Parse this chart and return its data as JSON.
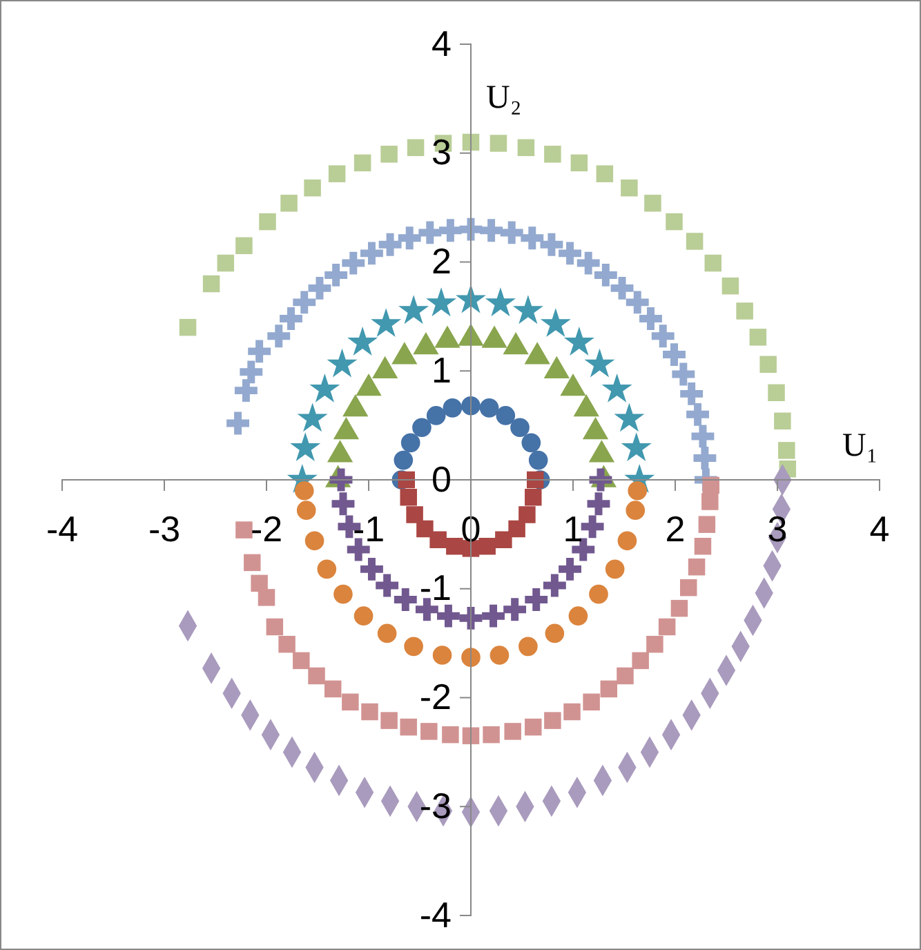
{
  "chart_data": {
    "type": "scatter",
    "xlabel": "U₁",
    "ylabel": "U₂",
    "xlim": [
      -4,
      4
    ],
    "ylim": [
      -4,
      4
    ],
    "xticks": [
      -4,
      -3,
      -2,
      -1,
      0,
      1,
      2,
      3,
      4
    ],
    "yticks": [
      -4,
      -3,
      -2,
      -1,
      0,
      1,
      2,
      3,
      4
    ],
    "grid": false,
    "series": [
      {
        "color": "#4572a7",
        "marker": "circle",
        "x": [
          0.68,
          0.66,
          0.59,
          0.48,
          0.34,
          0.18,
          0,
          -0.18,
          -0.34,
          -0.48,
          -0.59,
          -0.66,
          -0.68
        ],
        "values": [
          0,
          0.18,
          0.34,
          0.48,
          0.59,
          0.66,
          0.68,
          0.66,
          0.59,
          0.48,
          0.34,
          0.18,
          0
        ]
      },
      {
        "color": "#aa4643",
        "marker": "square",
        "x": [
          0.63,
          0.61,
          0.55,
          0.45,
          0.32,
          0.16,
          0,
          -0.16,
          -0.32,
          -0.45,
          -0.55,
          -0.61,
          -0.63
        ],
        "values": [
          0,
          -0.16,
          -0.32,
          -0.45,
          -0.55,
          -0.61,
          -0.63,
          -0.61,
          -0.55,
          -0.45,
          -0.32,
          -0.16,
          0
        ]
      },
      {
        "color": "#89a54e",
        "marker": "triangle",
        "x": [
          1.3,
          1.28,
          1.22,
          1.13,
          1,
          0.84,
          0.65,
          0.44,
          0.23,
          0,
          -0.23,
          -0.44,
          -0.65,
          -0.84,
          -1,
          -1.13,
          -1.22,
          -1.28,
          -1.3
        ],
        "values": [
          0,
          0.23,
          0.44,
          0.65,
          0.84,
          1,
          1.13,
          1.22,
          1.28,
          1.3,
          1.28,
          1.22,
          1.13,
          1,
          0.84,
          0.65,
          0.44,
          0.23,
          0
        ]
      },
      {
        "color": "#71588f",
        "marker": "cross",
        "x": [
          1.27,
          1.25,
          1.19,
          1.1,
          0.97,
          0.82,
          0.64,
          0.43,
          0.22,
          0,
          -0.22,
          -0.43,
          -0.64,
          -0.82,
          -0.97,
          -1.1,
          -1.19,
          -1.25,
          -1.27
        ],
        "values": [
          0,
          -0.22,
          -0.43,
          -0.64,
          -0.82,
          -0.97,
          -1.1,
          -1.19,
          -1.25,
          -1.27,
          -1.25,
          -1.19,
          -1.1,
          -0.97,
          -0.82,
          -0.64,
          -0.43,
          -0.22,
          0
        ]
      },
      {
        "color": "#4198af",
        "marker": "star",
        "x": [
          1.65,
          1.62,
          1.55,
          1.43,
          1.26,
          1.06,
          0.83,
          0.56,
          0.29,
          0,
          -0.29,
          -0.56,
          -0.83,
          -1.06,
          -1.26,
          -1.43,
          -1.55,
          -1.62,
          -1.65
        ],
        "values": [
          0,
          0.29,
          0.56,
          0.83,
          1.06,
          1.26,
          1.43,
          1.55,
          1.62,
          1.65,
          1.62,
          1.55,
          1.43,
          1.26,
          1.06,
          0.83,
          0.56,
          0.29,
          0
        ]
      },
      {
        "color": "#db843d",
        "marker": "circle",
        "x": [
          1.63,
          1.61,
          1.53,
          1.41,
          1.25,
          1.05,
          0.82,
          0.56,
          0.28,
          0,
          -0.28,
          -0.56,
          -0.82,
          -1.05,
          -1.25,
          -1.41,
          -1.53,
          -1.61,
          -1.63
        ],
        "values": [
          -0.1,
          -0.28,
          -0.56,
          -0.82,
          -1.05,
          -1.25,
          -1.41,
          -1.53,
          -1.61,
          -1.63,
          -1.61,
          -1.53,
          -1.41,
          -1.25,
          -1.05,
          -0.82,
          -0.56,
          -0.28,
          -0.1
        ]
      },
      {
        "color": "#93a9cf",
        "marker": "cross",
        "x": [
          2.3,
          2.29,
          2.27,
          2.22,
          2.16,
          2.08,
          1.99,
          1.88,
          1.76,
          1.63,
          1.48,
          1.32,
          1.15,
          0.97,
          0.79,
          0.6,
          0.4,
          0.2,
          0,
          -0.2,
          -0.4,
          -0.6,
          -0.79,
          -0.97,
          -1.15,
          -1.32,
          -1.48,
          -1.63,
          -1.76,
          -1.88,
          -2.07,
          -2.15,
          -2.2,
          -2.28
        ],
        "values": [
          0,
          0.2,
          0.4,
          0.6,
          0.79,
          0.97,
          1.15,
          1.32,
          1.48,
          1.63,
          1.76,
          1.88,
          1.99,
          2.08,
          2.16,
          2.22,
          2.27,
          2.29,
          2.3,
          2.29,
          2.27,
          2.22,
          2.16,
          2.08,
          1.99,
          1.88,
          1.76,
          1.63,
          1.48,
          1.32,
          1.18,
          0.99,
          0.82,
          0.52
        ]
      },
      {
        "color": "#d19392",
        "marker": "square",
        "x": [
          2.35,
          2.34,
          2.31,
          2.27,
          2.21,
          2.13,
          2.04,
          1.92,
          1.8,
          1.66,
          1.51,
          1.35,
          1.18,
          0.99,
          0.8,
          0.61,
          0.41,
          0.2,
          0,
          -0.2,
          -0.41,
          -0.61,
          -0.8,
          -0.99,
          -1.18,
          -1.35,
          -1.51,
          -1.66,
          -1.8,
          -1.92,
          -2,
          -2.07,
          -2.14,
          -2.22
        ],
        "values": [
          -0.05,
          -0.2,
          -0.41,
          -0.61,
          -0.8,
          -0.99,
          -1.18,
          -1.35,
          -1.51,
          -1.66,
          -1.8,
          -1.92,
          -2.04,
          -2.13,
          -2.21,
          -2.27,
          -2.31,
          -2.34,
          -2.35,
          -2.34,
          -2.31,
          -2.27,
          -2.21,
          -2.13,
          -2.04,
          -1.92,
          -1.8,
          -1.66,
          -1.51,
          -1.35,
          -1.08,
          -0.95,
          -0.76,
          -0.46
        ]
      },
      {
        "color": "#b9cd96",
        "marker": "square",
        "x": [
          3.1,
          3.09,
          3.05,
          2.99,
          2.91,
          2.81,
          2.68,
          2.54,
          2.37,
          2.19,
          1.99,
          1.78,
          1.55,
          1.31,
          1.06,
          0.8,
          0.54,
          0.27,
          0,
          -0.27,
          -0.54,
          -0.8,
          -1.06,
          -1.31,
          -1.55,
          -1.78,
          -1.99,
          -2.22,
          -2.4,
          -2.54,
          -2.77
        ],
        "values": [
          0.1,
          0.27,
          0.54,
          0.8,
          1.06,
          1.31,
          1.55,
          1.78,
          1.99,
          2.19,
          2.37,
          2.54,
          2.68,
          2.81,
          2.91,
          2.99,
          3.05,
          3.09,
          3.1,
          3.09,
          3.05,
          2.99,
          2.91,
          2.81,
          2.68,
          2.54,
          2.37,
          2.15,
          1.99,
          1.8,
          1.4
        ]
      },
      {
        "color": "#a99bbd",
        "marker": "diamond",
        "x": [
          3.05,
          3.04,
          3,
          2.95,
          2.87,
          2.76,
          2.64,
          2.5,
          2.34,
          2.16,
          1.96,
          1.75,
          1.53,
          1.29,
          1.04,
          0.79,
          0.53,
          0.27,
          0,
          -0.27,
          -0.53,
          -0.79,
          -1.04,
          -1.29,
          -1.53,
          -1.75,
          -1.96,
          -2.16,
          -2.34,
          -2.54,
          -2.77
        ],
        "values": [
          0,
          -0.27,
          -0.53,
          -0.79,
          -1.04,
          -1.29,
          -1.53,
          -1.75,
          -1.96,
          -2.16,
          -2.34,
          -2.5,
          -2.64,
          -2.76,
          -2.87,
          -2.95,
          -3,
          -3.04,
          -3.05,
          -3.04,
          -3,
          -2.95,
          -2.87,
          -2.76,
          -2.64,
          -2.5,
          -2.34,
          -2.16,
          -1.96,
          -1.73,
          -1.34
        ]
      }
    ]
  }
}
